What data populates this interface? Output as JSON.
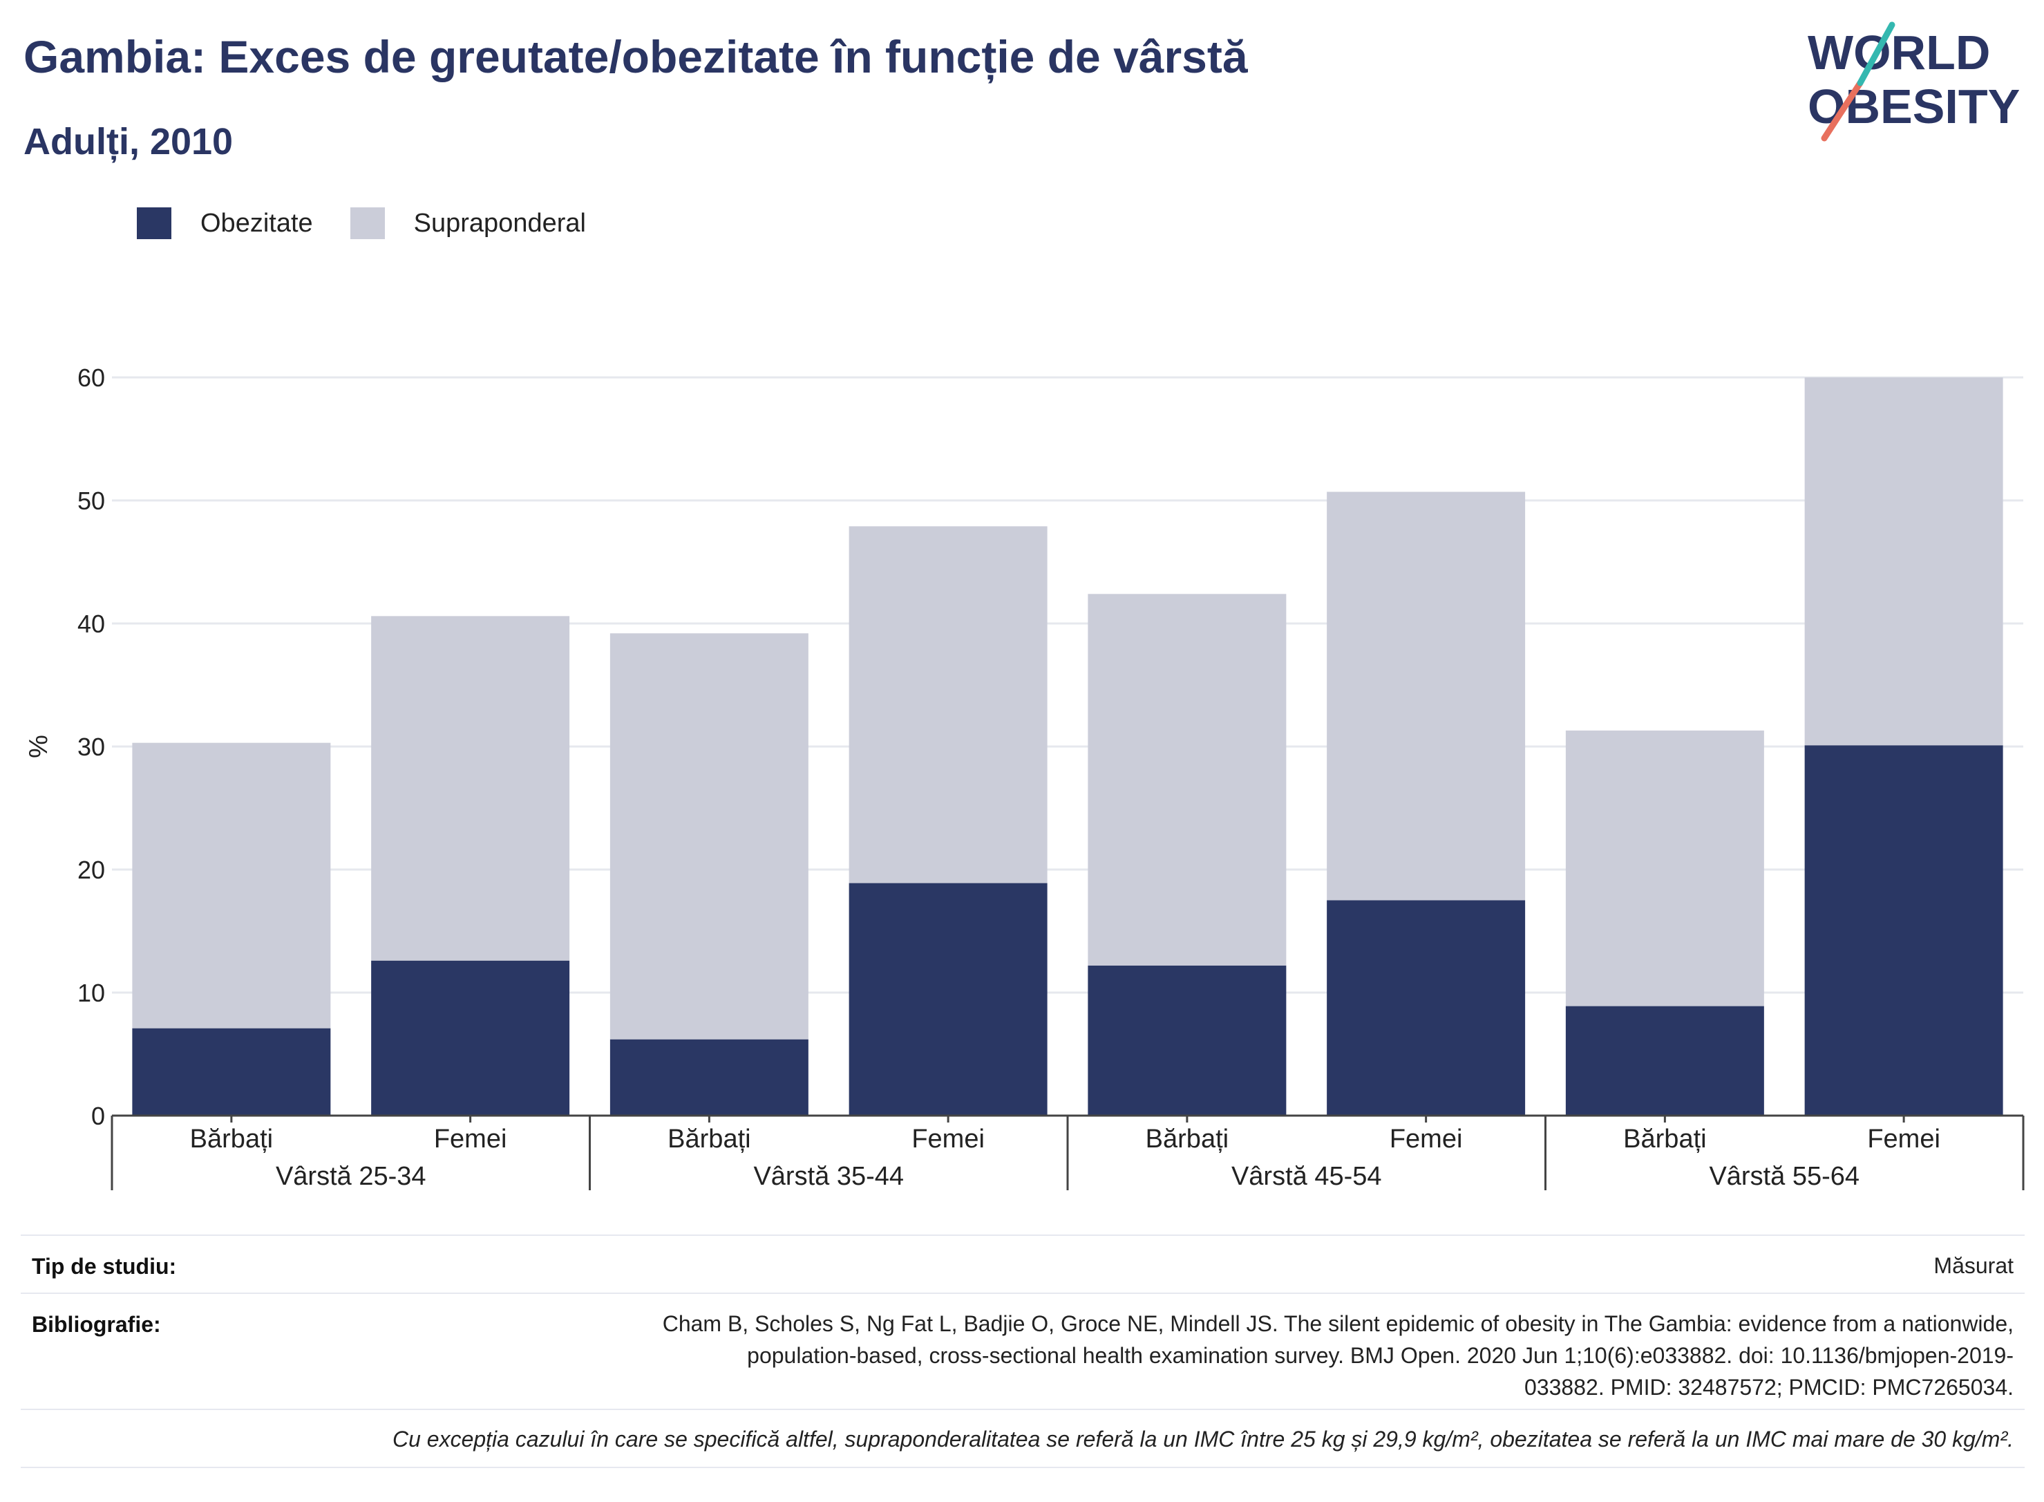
{
  "title": "Gambia: Exces de greutate/obezitate în funcție de vârstă",
  "subtitle": "Adulți, 2010",
  "logo": {
    "line1": "WORLD",
    "line2": "OBESITY"
  },
  "legend": [
    {
      "label": "Obezitate",
      "color": "#2a3764"
    },
    {
      "label": "Supraponderal",
      "color": "#cbcdd9"
    }
  ],
  "chart_data": {
    "type": "bar",
    "stacked": true,
    "ylabel": "%",
    "ylim": [
      0,
      60
    ],
    "yticks": [
      0,
      10,
      20,
      30,
      40,
      50,
      60
    ],
    "grid": true,
    "legend_position": "top-left",
    "categories": [
      "Bărbați",
      "Femei",
      "Bărbați",
      "Femei",
      "Bărbați",
      "Femei",
      "Bărbați",
      "Femei"
    ],
    "groups": [
      "Vârstă 25-34",
      "Vârstă 35-44",
      "Vârstă 45-54",
      "Vârstă 55-64"
    ],
    "series": [
      {
        "name": "Obezitate",
        "color": "#2a3764",
        "values": [
          7.1,
          12.6,
          6.2,
          18.9,
          12.2,
          17.5,
          8.9,
          30.1
        ]
      },
      {
        "name": "Supraponderal",
        "color": "#cbcdd9",
        "values": [
          23.2,
          28.0,
          33.0,
          29.0,
          30.2,
          33.2,
          22.4,
          29.9
        ]
      }
    ]
  },
  "info": {
    "study_label": "Tip de studiu:",
    "study_value": "Măsurat",
    "biblio_label": "Bibliografie:",
    "biblio_lines": [
      "Cham B, Scholes S, Ng Fat L, Badjie O, Groce NE, Mindell JS. The silent epidemic of obesity in The Gambia: evidence from a nationwide,",
      "population-based, cross-sectional health examination survey. BMJ Open. 2020 Jun 1;10(6):e033882. doi: 10.1136/bmjopen-2019-",
      "033882. PMID: 32487572; PMCID: PMC7265034."
    ],
    "footnote": "Cu excepția cazului în care se specifică altfel, supraponderalitatea se referă la un IMC între 25 kg și 29,9 kg/m², obezitatea se referă la un IMC mai mare de 30 kg/m²."
  }
}
